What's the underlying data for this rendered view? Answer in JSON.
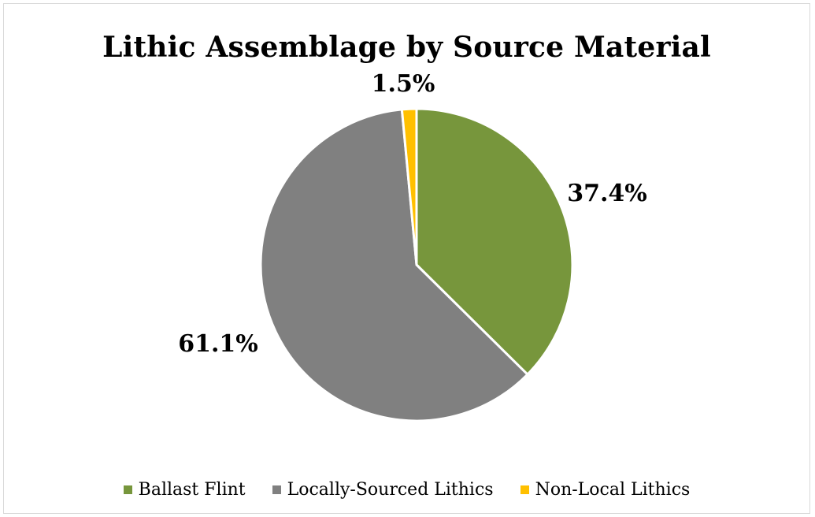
{
  "chart_data": {
    "type": "pie",
    "title": "Lithic Assemblage by Source Material",
    "categories": [
      "Ballast Flint",
      "Locally-Sourced Lithics",
      "Non-Local Lithics"
    ],
    "values": [
      37.4,
      61.1,
      1.5
    ],
    "data_labels": [
      "37.4%",
      "61.1%",
      "1.5%"
    ],
    "colors": [
      "#77963c",
      "#808080",
      "#ffc000"
    ],
    "start_angle_deg": 0,
    "direction": "clockwise",
    "legend_position": "bottom",
    "slice_border_color": "#ffffff"
  }
}
